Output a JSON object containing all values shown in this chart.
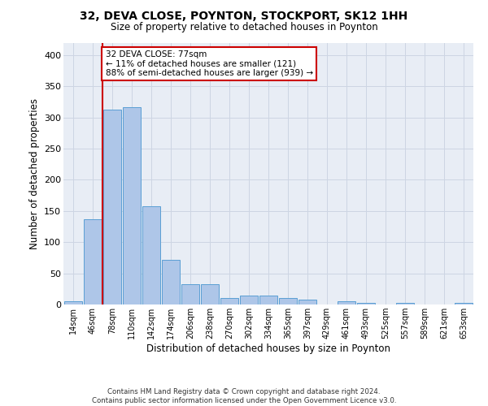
{
  "title": "32, DEVA CLOSE, POYNTON, STOCKPORT, SK12 1HH",
  "subtitle": "Size of property relative to detached houses in Poynton",
  "xlabel": "Distribution of detached houses by size in Poynton",
  "ylabel": "Number of detached properties",
  "categories": [
    "14sqm",
    "46sqm",
    "78sqm",
    "110sqm",
    "142sqm",
    "174sqm",
    "206sqm",
    "238sqm",
    "270sqm",
    "302sqm",
    "334sqm",
    "365sqm",
    "397sqm",
    "429sqm",
    "461sqm",
    "493sqm",
    "525sqm",
    "557sqm",
    "589sqm",
    "621sqm",
    "653sqm"
  ],
  "values": [
    5,
    137,
    312,
    317,
    158,
    71,
    32,
    32,
    10,
    14,
    14,
    10,
    8,
    0,
    5,
    3,
    0,
    3,
    0,
    0,
    3
  ],
  "bar_color": "#aec6e8",
  "bar_edge_color": "#5a9fd4",
  "vline_x": 1.5,
  "annotation_text_line1": "32 DEVA CLOSE: 77sqm",
  "annotation_text_line2": "← 11% of detached houses are smaller (121)",
  "annotation_text_line3": "88% of semi-detached houses are larger (939) →",
  "annotation_box_facecolor": "#ffffff",
  "annotation_box_edgecolor": "#cc0000",
  "vline_color": "#cc0000",
  "grid_color": "#cdd5e3",
  "background_color": "#e8edf5",
  "footer_line1": "Contains HM Land Registry data © Crown copyright and database right 2024.",
  "footer_line2": "Contains public sector information licensed under the Open Government Licence v3.0.",
  "ylim_max": 420,
  "yticks": [
    0,
    50,
    100,
    150,
    200,
    250,
    300,
    350,
    400
  ]
}
